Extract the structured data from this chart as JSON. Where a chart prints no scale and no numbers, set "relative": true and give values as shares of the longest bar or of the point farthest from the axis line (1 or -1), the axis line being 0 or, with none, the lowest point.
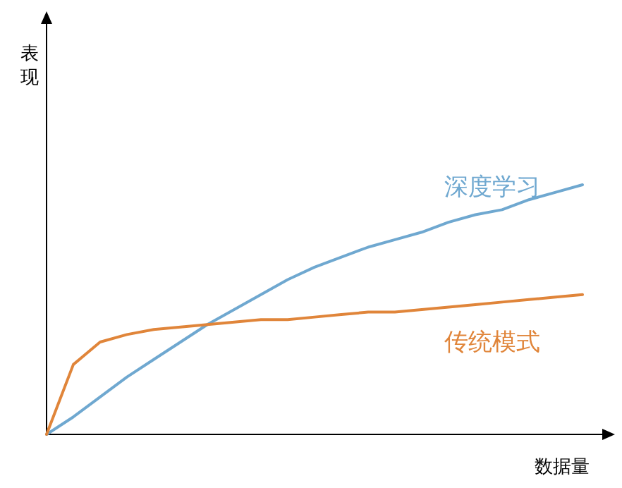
{
  "chart_data": {
    "type": "line",
    "relative": true,
    "xlabel": "数据量",
    "annotations": [
      "表现"
    ],
    "grid": false,
    "legend": false,
    "marker": "none",
    "line_style": "solid",
    "categories": [
      null,
      null,
      null,
      null,
      null,
      null,
      null,
      null,
      null,
      null,
      null,
      null,
      null,
      null,
      null,
      null,
      null,
      null,
      null,
      null,
      null
    ],
    "series": [
      {
        "name": "深度学习",
        "color": "#6fa8d0",
        "values": [
          0,
          0.07,
          0.15,
          0.23,
          0.3,
          0.37,
          0.44,
          0.5,
          0.56,
          0.62,
          0.67,
          0.71,
          0.75,
          0.78,
          0.81,
          0.85,
          0.88,
          0.9,
          0.94,
          0.97,
          1
        ]
      },
      {
        "name": "传统模式",
        "color": "#e0853a",
        "values": [
          0,
          0.28,
          0.37,
          0.4,
          0.42,
          0.43,
          0.44,
          0.45,
          0.46,
          0.46,
          0.47,
          0.48,
          0.49,
          0.49,
          0.5,
          0.51,
          0.52,
          0.53,
          0.54,
          0.55,
          0.56
        ]
      }
    ]
  }
}
